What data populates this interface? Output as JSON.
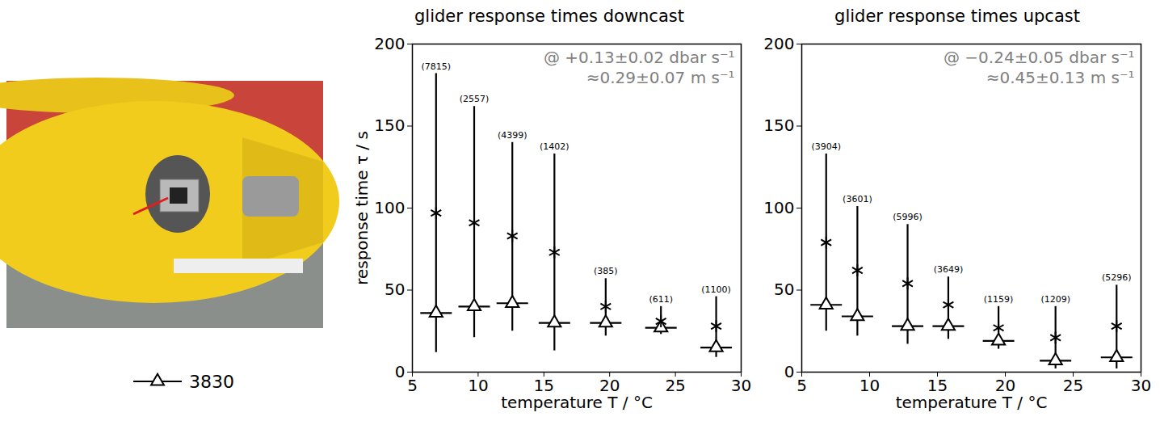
{
  "chart_data": [
    {
      "type": "errorbar",
      "title": "glider response times downcast",
      "annotations": [
        "@ +0.13±0.02 dbar s⁻¹",
        "≈0.29±0.07 m s⁻¹"
      ],
      "x_label": "temperature T / °C",
      "y_label": "response time τ / s",
      "xlim": [
        5,
        30
      ],
      "xticks": [
        5,
        10,
        15,
        20,
        25,
        30
      ],
      "ylim": [
        0,
        200
      ],
      "yticks": [
        0,
        50,
        100,
        150,
        200
      ],
      "legend": "left",
      "x": [
        6.8,
        9.7,
        12.6,
        15.8,
        19.7,
        23.9,
        28.1
      ],
      "series": [
        {
          "name": "3830",
          "color": "#000000",
          "marker": "triangle",
          "values": [
            36,
            40,
            42,
            30,
            30,
            27,
            15
          ],
          "min": [
            12,
            21,
            25,
            13,
            22,
            23,
            9
          ],
          "max": [
            182,
            162,
            140,
            133,
            57,
            40,
            46
          ],
          "count_labels": [
            "(7815)",
            "(2557)",
            "(4399)",
            "(1402)",
            "(385)",
            "(611)",
            "(1100)"
          ]
        },
        {
          "color": "#000000",
          "marker": "asterisk",
          "values": [
            97,
            91,
            83,
            73,
            40,
            31,
            28
          ]
        }
      ]
    },
    {
      "type": "errorbar",
      "title": "glider response times upcast",
      "annotations": [
        "@ −0.24±0.05 dbar s⁻¹",
        "≈0.45±0.13 m s⁻¹"
      ],
      "x_label": "temperature T / °C",
      "xlim": [
        5,
        30
      ],
      "xticks": [
        5,
        10,
        15,
        20,
        25,
        30
      ],
      "ylim": [
        0,
        200
      ],
      "yticks": [
        0,
        50,
        100,
        150,
        200
      ],
      "x": [
        6.8,
        9.1,
        12.8,
        15.8,
        19.5,
        23.7,
        28.2
      ],
      "series": [
        {
          "name": "3830",
          "color": "#000000",
          "marker": "triangle",
          "values": [
            41,
            34,
            28,
            28,
            19,
            7,
            9
          ],
          "min": [
            25,
            22,
            17,
            20,
            14,
            2,
            2
          ],
          "max": [
            133,
            101,
            90,
            58,
            40,
            40,
            53
          ],
          "count_labels": [
            "(3904)",
            "(3601)",
            "(5996)",
            "(3649)",
            "(1159)",
            "(1209)",
            "(5296)"
          ]
        },
        {
          "color": "#000000",
          "marker": "asterisk",
          "values": [
            79,
            62,
            54,
            41,
            27,
            21,
            28
          ]
        }
      ]
    }
  ]
}
